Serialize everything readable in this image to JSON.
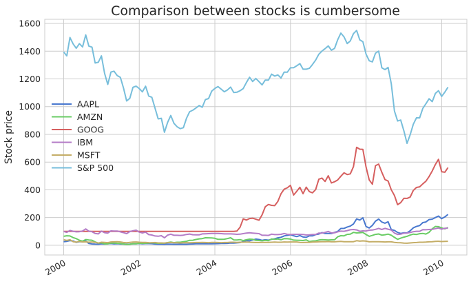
{
  "chart_data": {
    "type": "line",
    "title": "Comparison between stocks is cumbersome",
    "xlabel": "",
    "ylabel": "Stock price",
    "xlim": [
      "1999-07",
      "2010-09"
    ],
    "ylim": [
      -70,
      1630
    ],
    "x_ticks": [
      "2000",
      "2002",
      "2004",
      "2006",
      "2008",
      "2010"
    ],
    "y_ticks": [
      0,
      200,
      400,
      600,
      800,
      1000,
      1200,
      1400,
      1600
    ],
    "grid": true,
    "legend_position": "center-left",
    "x_start": "2000-01",
    "x_frequency": "monthly",
    "series": [
      {
        "name": "AAPL",
        "color": "#4878CF",
        "values": [
          25.94,
          28.66,
          33.95,
          31.01,
          21,
          26.19,
          25.41,
          30.47,
          12.88,
          9.78,
          8.25,
          7.44,
          10.81,
          9.12,
          11.03,
          12.74,
          9.98,
          11.62,
          9.4,
          9.27,
          7.76,
          8.78,
          10.65,
          10.95,
          12.36,
          10.85,
          11.84,
          12.14,
          11.65,
          8.86,
          7.63,
          7.38,
          7.25,
          8.03,
          7.75,
          7.16,
          7.18,
          7.51,
          7.07,
          7.11,
          8.98,
          9.53,
          10.54,
          11.31,
          10.36,
          11.44,
          10.45,
          10.69,
          11.28,
          11.96,
          13.52,
          12.89,
          14.03,
          16.27,
          16.17,
          17.25,
          19.38,
          26.2,
          33.53,
          32.2,
          38.45,
          44.86,
          41.67,
          36.06,
          39.76,
          36.81,
          42.65,
          46.89,
          53.61,
          57.59,
          67.82,
          71.89,
          75.51,
          68.49,
          62.72,
          70.39,
          59.77,
          57.27,
          67.96,
          67.85,
          76.98,
          81.08,
          91.66,
          84.84,
          85.73,
          84.61,
          92.91,
          99.8,
          121.19,
          122.04,
          131.76,
          138.48,
          153.47,
          189.95,
          182.22,
          198.08,
          135.36,
          125.02,
          143.5,
          173.95,
          188.75,
          167.44,
          158.95,
          169.53,
          113.66,
          107.59,
          92.67,
          85.35,
          90.13,
          89.31,
          105.12,
          125.83,
          135.81,
          142.43,
          163.39,
          168.21,
          185.35,
          188.5,
          199.91,
          210.73,
          192.06,
          204.62,
          223.02
        ]
      },
      {
        "name": "AMZN",
        "color": "#6ACC65",
        "values": [
          64.56,
          68.87,
          67,
          55.19,
          48.31,
          36.31,
          30.12,
          41.5,
          38.44,
          36.62,
          24.69,
          15.56,
          17.31,
          10.19,
          10.23,
          15.78,
          16.69,
          14.15,
          12.49,
          8.94,
          5.97,
          6.98,
          11.32,
          10.82,
          14.19,
          14.1,
          14.3,
          16.69,
          18.23,
          16.25,
          14.45,
          14.94,
          15.93,
          19.36,
          23.35,
          18.89,
          21.85,
          22.01,
          26.03,
          28.69,
          35.89,
          36.32,
          41.64,
          46.32,
          48.43,
          54.43,
          53.97,
          52.62,
          50.4,
          43.01,
          43.28,
          43.6,
          48.5,
          54.4,
          38.92,
          38.14,
          40.86,
          34.13,
          39.68,
          44.29,
          43.22,
          35.18,
          34.27,
          32.36,
          35.51,
          33.09,
          45.15,
          42.7,
          45.3,
          39.86,
          48.46,
          47.15,
          44.82,
          37.44,
          36.53,
          35.21,
          34.61,
          38.68,
          26.89,
          30.83,
          32.12,
          38.09,
          40.34,
          39.46,
          37.67,
          39.14,
          39.79,
          61.33,
          69.14,
          68.41,
          78.54,
          79.91,
          93.15,
          89.15,
          90.56,
          92.64,
          77.7,
          64.47,
          71.3,
          78.63,
          81.62,
          73.33,
          76.34,
          80.81,
          72.76,
          57.24,
          42.7,
          51.28,
          58.82,
          64.79,
          73.44,
          80.52,
          77.99,
          83.66,
          85.76,
          81.19,
          93.36,
          118.81,
          135.91,
          134.52,
          125.41,
          118.4,
          128.82
        ]
      },
      {
        "name": "GOOG",
        "color": "#D65F5F",
        "values": [
          100,
          100,
          100,
          100,
          100,
          100,
          100,
          100,
          100,
          100,
          100,
          100,
          100,
          100,
          100,
          100,
          100,
          100,
          100,
          100,
          100,
          100,
          100,
          100,
          100,
          100,
          100,
          100,
          100,
          100,
          100,
          100,
          100,
          100,
          100,
          100,
          100,
          100,
          100,
          100,
          100,
          100,
          100,
          100,
          100,
          100,
          100,
          100,
          100,
          100,
          100,
          100,
          100,
          100,
          100,
          102.37,
          129.6,
          190.64,
          181.98,
          192.79,
          195.62,
          187.99,
          180.51,
          220,
          277.27,
          294.15,
          287.76,
          286,
          316.46,
          372.14,
          404.91,
          414.86,
          432.66,
          362.62,
          390,
          417.94,
          371.82,
          419.33,
          386.6,
          378.53,
          401.9,
          476.39,
          484.81,
          460.48,
          501.5,
          449.45,
          458.16,
          471.38,
          497.91,
          522.7,
          510,
          515.25,
          567.27,
          707,
          693,
          691.48,
          564.3,
          471.18,
          440.47,
          574.29,
          585.8,
          526.42,
          473.75,
          463.29,
          400.52,
          359.36,
          292.96,
          307.65,
          338.53,
          337.99,
          348.06,
          395.97,
          417.23,
          421.59,
          443.05,
          461.67,
          495.85,
          536.12,
          583,
          619.98,
          529.94,
          526.8,
          560.19
        ]
      },
      {
        "name": "IBM",
        "color": "#B47CC7",
        "values": [
          100,
          93,
          107,
          101,
          97,
          98,
          103,
          118,
          102,
          98,
          85,
          82,
          102,
          91,
          88,
          104,
          103,
          103,
          97,
          91,
          84,
          99,
          105,
          109,
          95,
          89,
          95,
          77,
          74,
          67,
          65,
          69,
          54,
          73,
          80,
          72,
          72,
          71,
          73,
          78,
          81,
          76,
          75,
          75,
          82,
          83,
          84,
          85,
          85,
          85,
          84,
          82,
          82,
          82,
          81,
          79,
          80,
          84,
          88,
          90,
          88,
          86,
          84,
          72,
          72,
          71,
          80,
          77,
          77,
          79,
          85,
          79,
          78,
          79,
          79,
          79,
          78,
          74,
          75,
          78,
          78,
          88,
          88,
          93,
          100,
          89,
          90,
          97,
          102,
          101,
          106,
          112,
          114,
          111,
          101,
          104,
          103,
          109,
          110,
          115,
          122,
          114,
          122,
          116,
          110,
          88,
          78,
          80,
          87,
          88,
          92,
          98,
          101,
          101,
          113,
          112,
          114,
          115,
          120,
          125,
          116,
          123,
          124
        ]
      },
      {
        "name": "MSFT",
        "color": "#C4AD66",
        "values": [
          40,
          35,
          40,
          26,
          23,
          28,
          24,
          25,
          22,
          24,
          21,
          16,
          22,
          21,
          19,
          24,
          25,
          26,
          24,
          20,
          18,
          21,
          23,
          24,
          22,
          21,
          21,
          19,
          18,
          20,
          17,
          17,
          16,
          19,
          20,
          18,
          18,
          17,
          18,
          19,
          18,
          19,
          20,
          20,
          21,
          20,
          19,
          21,
          21,
          20,
          19,
          20,
          20,
          22,
          22,
          21,
          22,
          22,
          23,
          22,
          21,
          20,
          20,
          21,
          21,
          21,
          22,
          23,
          22,
          22,
          24,
          23,
          24,
          24,
          24,
          21,
          20,
          21,
          21,
          23,
          24,
          25,
          26,
          26,
          27,
          25,
          25,
          27,
          28,
          26,
          26,
          26,
          26,
          33,
          30,
          32,
          30,
          25,
          26,
          26,
          26,
          25,
          24,
          25,
          25,
          21,
          19,
          18,
          16,
          15,
          17,
          19,
          20,
          22,
          22,
          23,
          25,
          26,
          28,
          29,
          27,
          28,
          29
        ]
      },
      {
        "name": "S&P 500",
        "color": "#77BEDB",
        "values": [
          1394.46,
          1366.42,
          1498.58,
          1452.43,
          1420.6,
          1454.6,
          1430.83,
          1517.68,
          1436.51,
          1429.4,
          1314.95,
          1320.28,
          1366.01,
          1239.94,
          1160.33,
          1249.46,
          1255.82,
          1224.38,
          1211.23,
          1133.58,
          1040.94,
          1059.78,
          1139.45,
          1148.08,
          1130.2,
          1106.73,
          1147.39,
          1076.92,
          1067.14,
          989.82,
          911.62,
          916.07,
          815.28,
          885.76,
          936.31,
          879.82,
          855.7,
          841.15,
          848.18,
          916.92,
          963.59,
          974.5,
          990.31,
          1008.01,
          995.97,
          1050.71,
          1058.2,
          1111.92,
          1131.13,
          1144.94,
          1126.21,
          1107.3,
          1120.68,
          1140.84,
          1101.72,
          1104.24,
          1114.58,
          1130.2,
          1173.82,
          1211.92,
          1181.27,
          1203.6,
          1180.59,
          1156.85,
          1191.5,
          1191.33,
          1234.18,
          1220.33,
          1228.81,
          1207.01,
          1249.48,
          1248.29,
          1280.08,
          1280.66,
          1294.87,
          1310.61,
          1270.09,
          1270.2,
          1276.66,
          1303.82,
          1335.85,
          1377.94,
          1400.63,
          1418.3,
          1438.24,
          1406.82,
          1420.86,
          1482.37,
          1530.62,
          1503.35,
          1455.27,
          1473.99,
          1526.75,
          1549.38,
          1481.14,
          1468.36,
          1378.55,
          1330.63,
          1322.7,
          1385.59,
          1400.38,
          1280,
          1267.38,
          1282.83,
          1166.36,
          968.75,
          896.24,
          903.25,
          825.88,
          735.09,
          797.87,
          872.81,
          919.14,
          919.32,
          987.48,
          1020.62,
          1057.08,
          1036.19,
          1095.63,
          1115.1,
          1073.87,
          1104.49,
          1140.45
        ]
      }
    ]
  }
}
